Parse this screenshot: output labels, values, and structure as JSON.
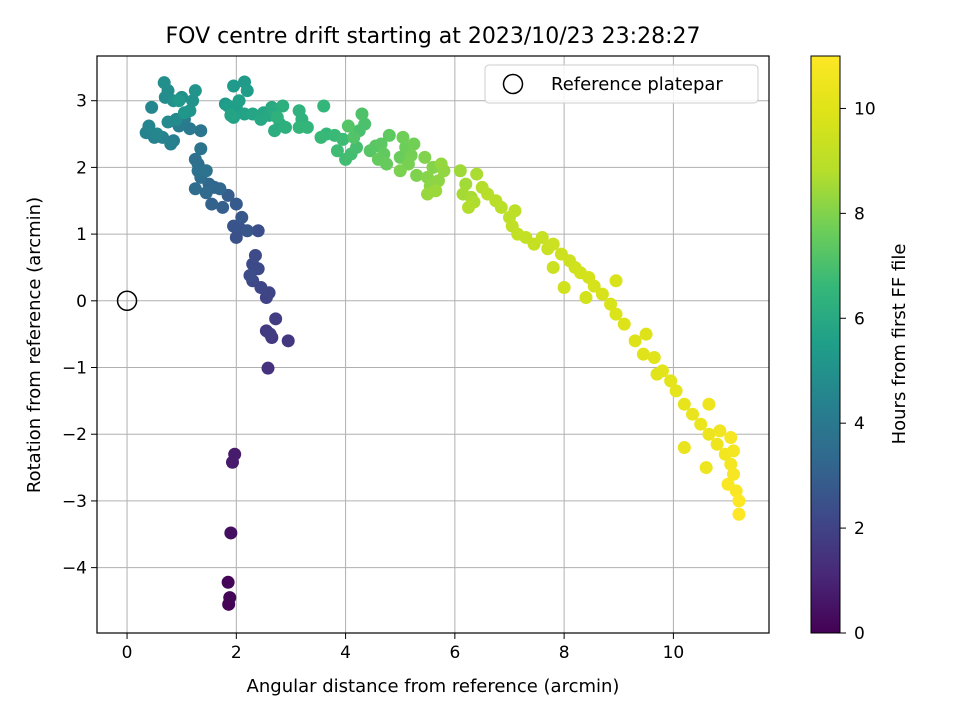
{
  "chart_data": {
    "type": "scatter",
    "title": "FOV centre drift starting at 2023/10/23 23:28:27",
    "xlabel": "Angular distance from reference (arcmin)",
    "ylabel": "Rotation from reference (arcmin)",
    "colorbar_label": "Hours from first FF file",
    "xlim": [
      -0.55,
      11.75
    ],
    "ylim": [
      -4.98,
      3.67
    ],
    "x_ticks": [
      0,
      2,
      4,
      6,
      8,
      10
    ],
    "y_ticks": [
      -4,
      -3,
      -2,
      -1,
      0,
      1,
      2,
      3
    ],
    "colorbar_ticks": [
      0,
      2,
      4,
      6,
      8,
      10
    ],
    "colorbar_range": [
      0,
      11
    ],
    "colormap": "viridis",
    "grid": true,
    "legend": {
      "placement": "upper-right",
      "entries": [
        {
          "label": "Reference platepar",
          "marker": "open-circle"
        }
      ]
    },
    "reference_point": {
      "x": 0,
      "y": 0
    },
    "points": [
      [
        1.86,
        -4.55,
        0.05
      ],
      [
        1.88,
        -4.45,
        0.1
      ],
      [
        1.85,
        -4.22,
        0.15
      ],
      [
        1.9,
        -3.48,
        0.4
      ],
      [
        1.93,
        -2.42,
        0.7
      ],
      [
        1.97,
        -2.3,
        0.75
      ],
      [
        2.58,
        -1.01,
        1.4
      ],
      [
        2.95,
        -0.6,
        1.6
      ],
      [
        2.65,
        -0.55,
        1.65
      ],
      [
        2.55,
        -0.45,
        1.7
      ],
      [
        2.62,
        -0.5,
        1.75
      ],
      [
        2.72,
        -0.27,
        1.8
      ],
      [
        2.55,
        0.05,
        2.0
      ],
      [
        2.6,
        0.12,
        2.05
      ],
      [
        2.45,
        0.2,
        2.1
      ],
      [
        2.3,
        0.3,
        2.15
      ],
      [
        2.4,
        0.48,
        2.2
      ],
      [
        2.3,
        0.55,
        2.25
      ],
      [
        2.35,
        0.68,
        2.3
      ],
      [
        2.25,
        0.38,
        2.35
      ],
      [
        2.4,
        1.05,
        2.4
      ],
      [
        2.0,
        0.95,
        2.5
      ],
      [
        2.05,
        1.1,
        2.55
      ],
      [
        1.95,
        1.12,
        2.6
      ],
      [
        2.2,
        1.05,
        2.65
      ],
      [
        2.1,
        1.25,
        2.7
      ],
      [
        2.0,
        1.45,
        2.8
      ],
      [
        1.85,
        1.58,
        2.9
      ],
      [
        1.75,
        1.4,
        3.0
      ],
      [
        1.55,
        1.45,
        3.1
      ],
      [
        1.6,
        1.7,
        3.2
      ],
      [
        1.7,
        1.68,
        3.25
      ],
      [
        1.5,
        1.75,
        3.3
      ],
      [
        1.45,
        1.62,
        3.4
      ],
      [
        1.25,
        1.68,
        3.5
      ],
      [
        1.35,
        1.85,
        3.55
      ],
      [
        1.3,
        2.05,
        3.6
      ],
      [
        1.25,
        2.12,
        3.65
      ],
      [
        1.3,
        1.95,
        3.7
      ],
      [
        1.45,
        1.95,
        3.75
      ],
      [
        1.35,
        2.28,
        3.8
      ],
      [
        1.35,
        2.55,
        3.9
      ],
      [
        1.15,
        2.58,
        4.0
      ],
      [
        0.95,
        2.62,
        4.1
      ],
      [
        1.05,
        2.72,
        4.15
      ],
      [
        0.85,
        2.4,
        4.2
      ],
      [
        0.8,
        2.35,
        4.3
      ],
      [
        0.65,
        2.45,
        4.35
      ],
      [
        0.5,
        2.45,
        4.4
      ],
      [
        0.35,
        2.52,
        4.45
      ],
      [
        0.4,
        2.62,
        4.5
      ],
      [
        0.55,
        2.5,
        4.55
      ],
      [
        0.45,
        2.9,
        4.6
      ],
      [
        0.75,
        2.68,
        4.7
      ],
      [
        0.9,
        2.72,
        4.75
      ],
      [
        0.7,
        3.05,
        4.8
      ],
      [
        0.75,
        3.15,
        4.85
      ],
      [
        0.68,
        3.27,
        4.9
      ],
      [
        0.85,
        3.0,
        4.95
      ],
      [
        1.0,
        3.05,
        5.0
      ],
      [
        1.2,
        3.0,
        5.05
      ],
      [
        1.25,
        3.15,
        5.1
      ],
      [
        1.15,
        2.85,
        5.15
      ],
      [
        1.05,
        2.82,
        5.2
      ],
      [
        0.95,
        3.0,
        5.25
      ],
      [
        1.8,
        2.95,
        5.3
      ],
      [
        1.95,
        3.22,
        5.35
      ],
      [
        2.15,
        3.28,
        5.4
      ],
      [
        2.2,
        3.15,
        5.45
      ],
      [
        1.85,
        2.92,
        5.5
      ],
      [
        2.0,
        2.9,
        5.55
      ],
      [
        2.05,
        3.0,
        5.6
      ],
      [
        1.95,
        2.75,
        5.65
      ],
      [
        2.15,
        2.8,
        5.7
      ],
      [
        1.9,
        2.78,
        5.75
      ],
      [
        2.3,
        2.8,
        5.8
      ],
      [
        2.5,
        2.82,
        5.85
      ],
      [
        2.45,
        2.72,
        5.9
      ],
      [
        2.6,
        2.78,
        5.95
      ],
      [
        2.65,
        2.9,
        6.0
      ],
      [
        2.7,
        2.85,
        6.05
      ],
      [
        2.8,
        2.65,
        6.1
      ],
      [
        2.7,
        2.55,
        6.15
      ],
      [
        2.85,
        2.92,
        6.2
      ],
      [
        2.9,
        2.6,
        6.25
      ],
      [
        2.75,
        2.75,
        6.3
      ],
      [
        3.15,
        2.85,
        6.35
      ],
      [
        3.2,
        2.72,
        6.4
      ],
      [
        3.3,
        2.6,
        6.45
      ],
      [
        3.15,
        2.6,
        6.5
      ],
      [
        3.6,
        2.92,
        6.55
      ],
      [
        3.65,
        2.5,
        6.6
      ],
      [
        3.55,
        2.45,
        6.65
      ],
      [
        3.8,
        2.48,
        6.7
      ],
      [
        3.95,
        2.42,
        6.75
      ],
      [
        3.85,
        2.25,
        6.8
      ],
      [
        4.0,
        2.12,
        6.85
      ],
      [
        4.1,
        2.2,
        6.9
      ],
      [
        4.2,
        2.3,
        6.95
      ],
      [
        4.25,
        2.55,
        7.0
      ],
      [
        4.35,
        2.65,
        7.05
      ],
      [
        4.3,
        2.8,
        7.1
      ],
      [
        4.15,
        2.45,
        7.15
      ],
      [
        4.05,
        2.62,
        7.2
      ],
      [
        4.45,
        2.25,
        7.25
      ],
      [
        4.55,
        2.32,
        7.3
      ],
      [
        4.65,
        2.35,
        7.35
      ],
      [
        4.8,
        2.48,
        7.4
      ],
      [
        4.7,
        2.2,
        7.45
      ],
      [
        4.6,
        2.12,
        7.5
      ],
      [
        4.75,
        2.05,
        7.55
      ],
      [
        5.0,
        2.15,
        7.6
      ],
      [
        5.1,
        2.3,
        7.65
      ],
      [
        5.05,
        2.45,
        7.7
      ],
      [
        5.25,
        2.35,
        7.75
      ],
      [
        5.2,
        2.18,
        7.8
      ],
      [
        5.15,
        2.05,
        7.85
      ],
      [
        5.0,
        1.95,
        7.9
      ],
      [
        5.3,
        1.88,
        7.95
      ],
      [
        5.45,
        2.15,
        8.0
      ],
      [
        5.6,
        2.0,
        8.05
      ],
      [
        5.5,
        1.85,
        8.1
      ],
      [
        5.55,
        1.72,
        8.15
      ],
      [
        5.7,
        1.8,
        8.2
      ],
      [
        5.8,
        1.95,
        8.25
      ],
      [
        5.75,
        2.05,
        8.3
      ],
      [
        5.5,
        1.6,
        8.35
      ],
      [
        5.65,
        1.65,
        8.4
      ],
      [
        6.1,
        1.95,
        8.45
      ],
      [
        6.2,
        1.75,
        8.5
      ],
      [
        6.15,
        1.6,
        8.55
      ],
      [
        6.3,
        1.55,
        8.6
      ],
      [
        6.4,
        1.9,
        8.65
      ],
      [
        6.35,
        1.48,
        8.7
      ],
      [
        6.25,
        1.4,
        8.75
      ],
      [
        6.5,
        1.7,
        8.8
      ],
      [
        6.6,
        1.6,
        8.85
      ],
      [
        6.75,
        1.5,
        8.9
      ],
      [
        6.85,
        1.4,
        8.95
      ],
      [
        7.0,
        1.25,
        9.0
      ],
      [
        7.1,
        1.35,
        9.05
      ],
      [
        7.05,
        1.12,
        9.1
      ],
      [
        7.15,
        1.0,
        9.15
      ],
      [
        7.3,
        0.95,
        9.2
      ],
      [
        7.45,
        0.85,
        9.25
      ],
      [
        7.6,
        0.95,
        9.3
      ],
      [
        7.7,
        0.78,
        9.35
      ],
      [
        7.8,
        0.85,
        9.4
      ],
      [
        7.95,
        0.7,
        9.45
      ],
      [
        8.1,
        0.6,
        9.5
      ],
      [
        8.2,
        0.5,
        9.55
      ],
      [
        8.3,
        0.42,
        9.6
      ],
      [
        8.45,
        0.35,
        9.65
      ],
      [
        8.55,
        0.22,
        9.7
      ],
      [
        8.7,
        0.1,
        9.75
      ],
      [
        8.85,
        -0.05,
        9.8
      ],
      [
        8.95,
        -0.2,
        9.85
      ],
      [
        9.1,
        -0.35,
        9.9
      ],
      [
        9.3,
        -0.6,
        9.95
      ],
      [
        9.45,
        -0.8,
        10.0
      ],
      [
        9.65,
        -0.85,
        10.05
      ],
      [
        9.8,
        -1.05,
        10.1
      ],
      [
        9.95,
        -1.2,
        10.15
      ],
      [
        10.05,
        -1.35,
        10.2
      ],
      [
        10.2,
        -1.55,
        10.25
      ],
      [
        10.35,
        -1.7,
        10.3
      ],
      [
        10.5,
        -1.85,
        10.35
      ],
      [
        10.65,
        -2.0,
        10.4
      ],
      [
        10.8,
        -2.15,
        10.5
      ],
      [
        10.95,
        -2.3,
        10.6
      ],
      [
        11.05,
        -2.45,
        10.7
      ],
      [
        11.1,
        -2.6,
        10.8
      ],
      [
        11.15,
        -2.85,
        10.9
      ],
      [
        11.2,
        -3.0,
        10.95
      ],
      [
        11.2,
        -3.2,
        11.0
      ],
      [
        8.95,
        0.3,
        9.8
      ],
      [
        9.5,
        -0.5,
        9.95
      ],
      [
        9.7,
        -1.1,
        10.05
      ],
      [
        10.2,
        -2.2,
        10.3
      ],
      [
        10.6,
        -2.5,
        10.45
      ],
      [
        10.65,
        -1.55,
        10.5
      ],
      [
        10.85,
        -1.95,
        10.55
      ],
      [
        11.0,
        -2.75,
        10.9
      ],
      [
        11.1,
        -2.25,
        10.7
      ],
      [
        11.05,
        -2.05,
        10.8
      ],
      [
        8.0,
        0.2,
        9.55
      ],
      [
        8.4,
        0.05,
        9.6
      ],
      [
        7.8,
        0.5,
        9.4
      ]
    ]
  }
}
